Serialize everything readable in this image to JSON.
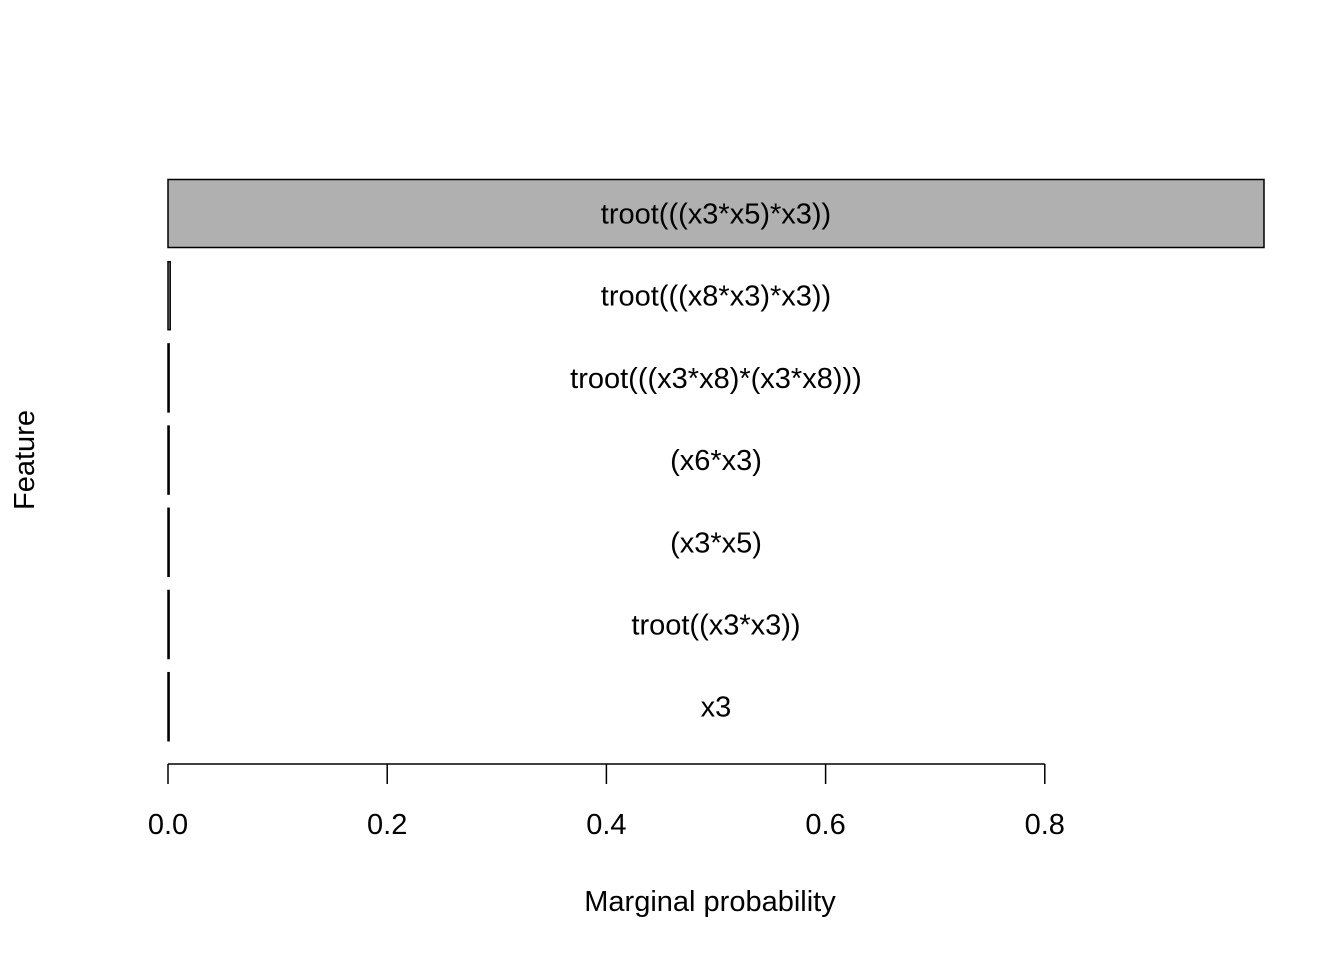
{
  "chart_data": {
    "type": "bar",
    "orientation": "horizontal",
    "title": "",
    "xlabel": "Marginal probability",
    "ylabel": "Feature",
    "categories": [
      "troot(((x3*x5)*x3))",
      "troot(((x8*x3)*x3))",
      "troot(((x3*x8)*(x3*x8)))",
      "(x6*x3)",
      "(x3*x5)",
      "troot((x3*x3))",
      "x3"
    ],
    "values": [
      1.0,
      0.002,
      0.001,
      0.001,
      0.001,
      0.001,
      0.001
    ],
    "xlim": [
      0,
      1
    ],
    "xticks": [
      0.0,
      0.2,
      0.4,
      0.6,
      0.8
    ],
    "xtick_labels": [
      "0.0",
      "0.2",
      "0.4",
      "0.6",
      "0.8"
    ],
    "grid": false,
    "legend": "none",
    "bar_fill_color": "#b0b0b0",
    "bar_stroke_color": "#000000"
  }
}
